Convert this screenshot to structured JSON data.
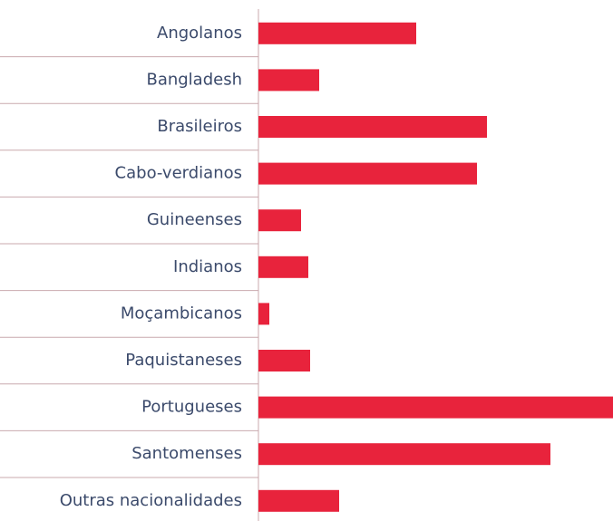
{
  "chart_data": {
    "type": "bar",
    "orientation": "horizontal",
    "categories": [
      "Angolanos",
      "Bangladesh",
      "Brasileiros",
      "Cabo-verdianos",
      "Guineenses",
      "Indianos",
      "Moçambicanos",
      "Paquistaneses",
      "Portugueses",
      "Santomenses",
      "Outras nacionalidades"
    ],
    "values": [
      174,
      67,
      252,
      241,
      47,
      55,
      12,
      57,
      391,
      322,
      89
    ],
    "color": "#e8233c",
    "xlim": [
      0,
      391
    ]
  }
}
